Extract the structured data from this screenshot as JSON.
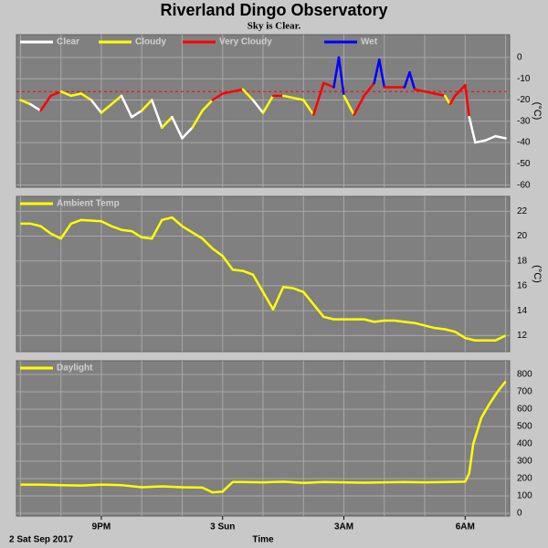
{
  "title": "Riverland Dingo Observatory",
  "subtitle": "Sky is Clear.",
  "xlabel": "Time",
  "date_label": "2 Sat Sep 2017",
  "chart_data": [
    {
      "type": "condition_line",
      "ylabel": "(°C)",
      "ylim": [
        -61,
        10.7
      ],
      "yticks": [
        0,
        -10,
        -20,
        -30,
        -40,
        -50,
        -60
      ],
      "grid": true,
      "xlim": [
        18.9,
        31.1
      ],
      "xgrid": [
        19,
        20,
        21,
        22,
        23,
        24,
        25,
        26,
        27,
        28,
        29,
        30,
        31
      ],
      "threshold": -16,
      "threshold_color": "#ff0000",
      "legend": [
        {
          "name": "Clear",
          "color": "#ffffff"
        },
        {
          "name": "Cloudy",
          "color": "#ffff00"
        },
        {
          "name": "Very Cloudy",
          "color": "#ff0000"
        },
        {
          "name": "Wet",
          "color": "#0000ff"
        }
      ],
      "x": [
        19.0,
        19.25,
        19.5,
        19.75,
        20.0,
        20.25,
        20.5,
        20.75,
        21.0,
        21.25,
        21.5,
        21.75,
        22.0,
        22.25,
        22.5,
        22.75,
        23.0,
        23.25,
        23.5,
        23.75,
        24.0,
        24.25,
        24.5,
        24.75,
        25.0,
        25.25,
        25.5,
        25.75,
        26.0,
        26.25,
        26.5,
        26.75,
        26.875,
        27.0,
        27.25,
        27.5,
        27.75,
        27.875,
        28.0,
        28.25,
        28.5,
        28.625,
        28.75,
        29.0,
        29.25,
        29.5,
        29.625,
        29.75,
        30.0,
        30.1,
        30.25,
        30.5,
        30.75,
        31.0
      ],
      "values": [
        -20,
        -22,
        -25,
        -18,
        -16,
        -18,
        -17,
        -20,
        -26,
        -22,
        -18,
        -28,
        -25,
        -20,
        -33,
        -28,
        -38,
        -33,
        -25,
        -20,
        -17,
        -16,
        -15,
        -20,
        -26,
        -18,
        -18,
        -19,
        -20,
        -27,
        -12,
        -14,
        0,
        -18,
        -27,
        -18,
        -12,
        -1,
        -14,
        -14,
        -14,
        -7,
        -15,
        -16,
        -17,
        -18,
        -22,
        -18,
        -13,
        -28,
        -40,
        -39,
        -37,
        -38
      ],
      "conditions": [
        "Cloudy",
        "Cloudy",
        "Clear",
        "Very Cloudy",
        "Very Cloudy",
        "Cloudy",
        "Cloudy",
        "Cloudy",
        "Clear",
        "Cloudy",
        "Cloudy",
        "Clear",
        "Clear",
        "Cloudy",
        "Clear",
        "Cloudy",
        "Clear",
        "Clear",
        "Cloudy",
        "Cloudy",
        "Very Cloudy",
        "Very Cloudy",
        "Very Cloudy",
        "Cloudy",
        "Clear",
        "Cloudy",
        "Very Cloudy",
        "Cloudy",
        "Cloudy",
        "Cloudy",
        "Very Cloudy",
        "Very Cloudy",
        "Wet",
        "Wet",
        "Cloudy",
        "Very Cloudy",
        "Very Cloudy",
        "Wet",
        "Wet",
        "Very Cloudy",
        "Very Cloudy",
        "Wet",
        "Wet",
        "Very Cloudy",
        "Very Cloudy",
        "Very Cloudy",
        "Cloudy",
        "Very Cloudy",
        "Very Cloudy",
        "Very Cloudy",
        "Clear",
        "Clear",
        "Clear",
        "Clear"
      ]
    },
    {
      "type": "line",
      "ylabel": "(°C)",
      "ylim": [
        10.7,
        23.2
      ],
      "yticks": [
        22,
        20,
        18,
        16,
        14,
        12
      ],
      "grid": true,
      "xlim": [
        18.9,
        31.1
      ],
      "xgrid": [
        19,
        20,
        21,
        22,
        23,
        24,
        25,
        26,
        27,
        28,
        29,
        30,
        31
      ],
      "x": [
        19.0,
        19.25,
        19.5,
        19.75,
        20.0,
        20.25,
        20.5,
        21.0,
        21.25,
        21.5,
        21.75,
        22.0,
        22.25,
        22.5,
        22.75,
        23.0,
        23.25,
        23.5,
        23.75,
        24.0,
        24.25,
        24.5,
        24.75,
        25.0,
        25.25,
        25.5,
        25.75,
        26.0,
        26.25,
        26.5,
        26.75,
        27.0,
        27.25,
        27.5,
        27.75,
        28.0,
        28.25,
        28.5,
        28.75,
        29.0,
        29.25,
        29.5,
        29.75,
        30.0,
        30.25,
        30.5,
        30.75,
        31.0
      ],
      "series": [
        {
          "name": "Ambient Temp",
          "color": "#ffff00",
          "values": [
            21.0,
            21.0,
            20.8,
            20.2,
            19.8,
            21.0,
            21.3,
            21.2,
            20.8,
            20.5,
            20.4,
            19.9,
            19.8,
            21.3,
            21.5,
            20.8,
            20.3,
            19.8,
            19.0,
            18.4,
            17.3,
            17.2,
            16.9,
            15.5,
            14.1,
            15.9,
            15.8,
            15.5,
            14.5,
            13.5,
            13.3,
            13.3,
            13.3,
            13.3,
            13.1,
            13.2,
            13.2,
            13.1,
            13.0,
            12.8,
            12.6,
            12.5,
            12.3,
            11.8,
            11.6,
            11.6,
            11.6,
            12.0
          ]
        }
      ]
    },
    {
      "type": "line",
      "ylim": [
        -16,
        879
      ],
      "yticks": [
        800,
        700,
        600,
        500,
        400,
        300,
        200,
        100,
        0
      ],
      "grid": true,
      "xlim": [
        18.9,
        31.1
      ],
      "xgrid": [
        19,
        20,
        21,
        22,
        23,
        24,
        25,
        26,
        27,
        28,
        29,
        30,
        31
      ],
      "xticks": [
        {
          "value": 21,
          "label": "9PM"
        },
        {
          "value": 24,
          "label": "3 Sun"
        },
        {
          "value": 27,
          "label": "3AM"
        },
        {
          "value": 30,
          "label": "6AM"
        }
      ],
      "x": [
        19.0,
        19.5,
        20.0,
        20.5,
        21.0,
        21.5,
        22.0,
        22.5,
        23.0,
        23.5,
        23.75,
        24.0,
        24.25,
        24.5,
        25.0,
        25.5,
        26.0,
        26.5,
        27.0,
        27.5,
        28.0,
        28.5,
        29.0,
        29.5,
        30.0,
        30.1,
        30.2,
        30.4,
        30.6,
        30.8,
        31.0
      ],
      "series": [
        {
          "name": "Daylight",
          "color": "#ffff00",
          "values": [
            165,
            165,
            162,
            160,
            165,
            162,
            150,
            155,
            150,
            148,
            120,
            125,
            180,
            180,
            178,
            182,
            175,
            180,
            178,
            176,
            178,
            180,
            178,
            180,
            182,
            230,
            400,
            550,
            630,
            700,
            760
          ]
        }
      ]
    }
  ]
}
